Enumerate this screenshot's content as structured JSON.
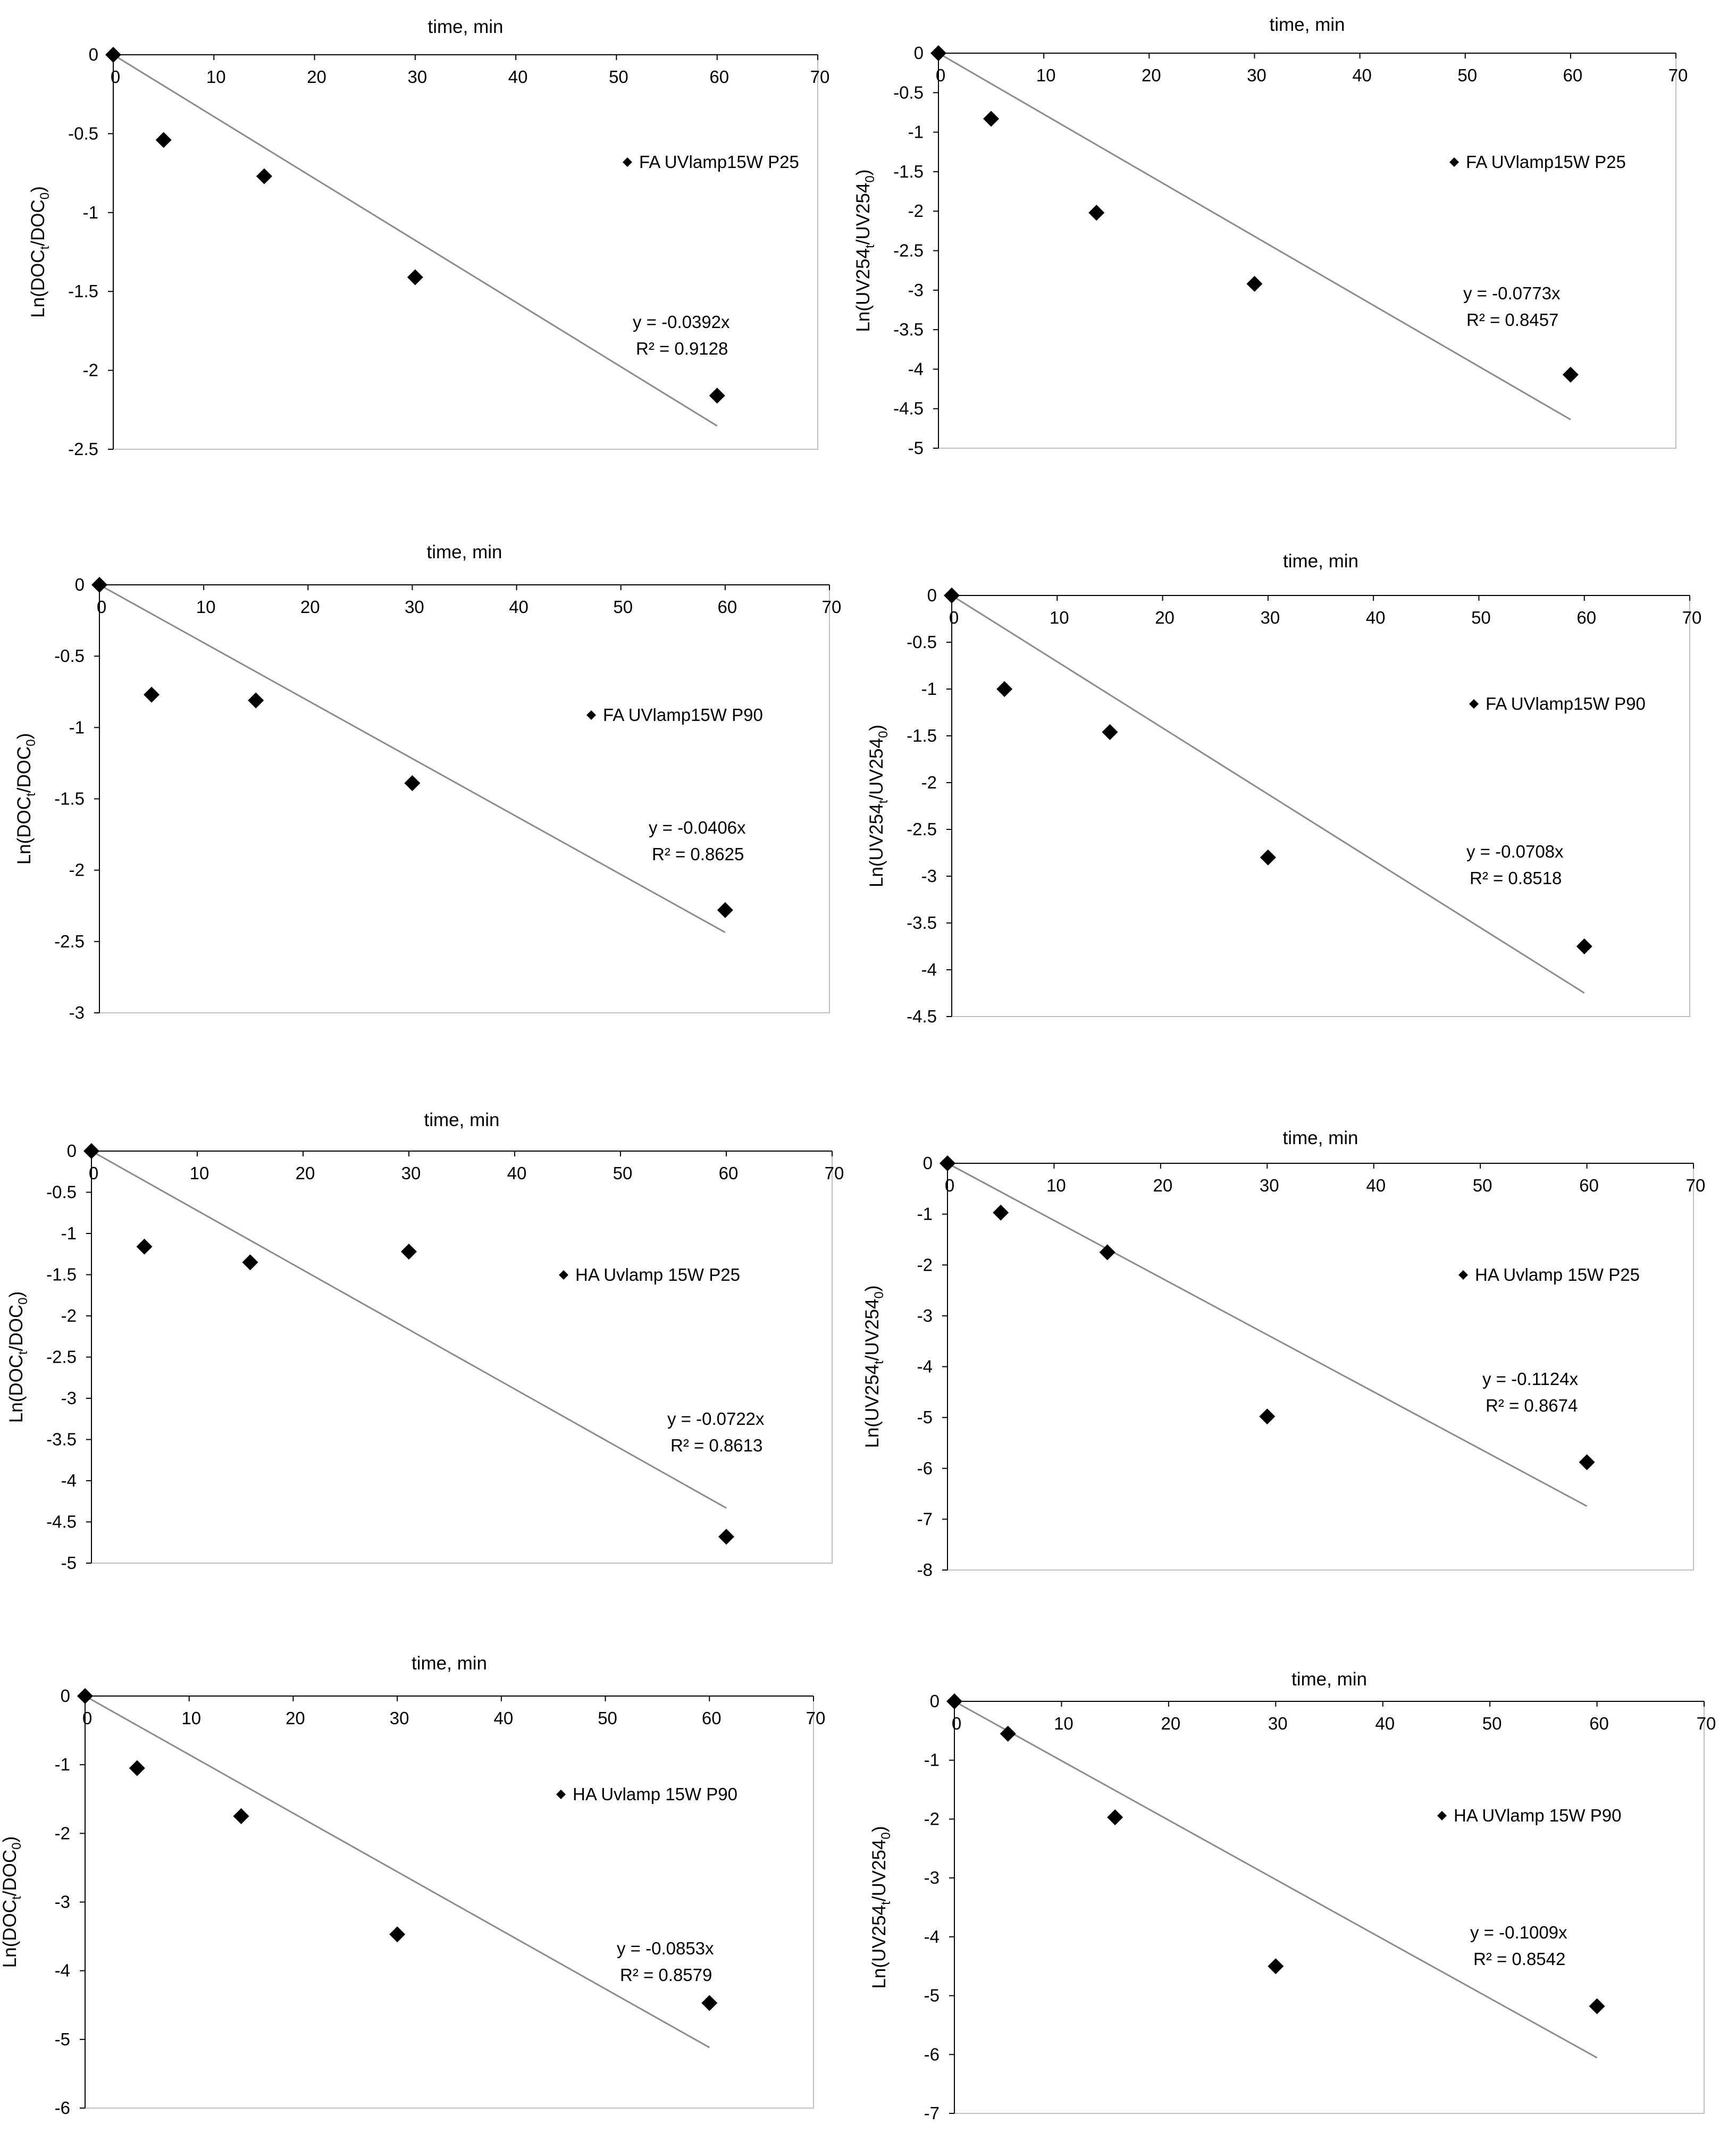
{
  "chart_data": [
    {
      "type": "scatter",
      "xlabel": "time, min",
      "ylabel": {
        "base": "Ln(DOC",
        "sub1": "t",
        "mid": "/DOC",
        "sub2": "0",
        "end": ")"
      },
      "xlim": [
        0,
        70
      ],
      "ylim": [
        -2.5,
        0
      ],
      "xticks": [
        "0",
        "10",
        "20",
        "30",
        "40",
        "50",
        "60",
        "70"
      ],
      "yticks": [
        "0",
        "-0.5",
        "-1",
        "-1.5",
        "-2",
        "-2.5"
      ],
      "series": [
        {
          "name": "FA UVlamp15W P25",
          "x": [
            0,
            5,
            15,
            30,
            60
          ],
          "y": [
            0,
            -0.54,
            -0.77,
            -1.41,
            -2.16
          ]
        }
      ],
      "trendline": {
        "slope": -0.0392,
        "x_end": 60,
        "equation": "y = -0.0392x",
        "r2": "R² = 0.9128"
      }
    },
    {
      "type": "scatter",
      "xlabel": "time, min",
      "ylabel": {
        "base": "Ln(UV254",
        "sub1": "t",
        "mid": "/UV254",
        "sub2": "0",
        "end": ")"
      },
      "xlim": [
        0,
        70
      ],
      "ylim": [
        -5,
        0
      ],
      "xticks": [
        "0",
        "10",
        "20",
        "30",
        "40",
        "50",
        "60",
        "70"
      ],
      "yticks": [
        "0",
        "-0.5",
        "-1",
        "-1.5",
        "-2",
        "-2.5",
        "-3",
        "-3.5",
        "-4",
        "-4.5",
        "-5"
      ],
      "series": [
        {
          "name": "FA UVlamp15W P25",
          "x": [
            0,
            5,
            15,
            30,
            60
          ],
          "y": [
            0,
            -0.83,
            -2.02,
            -2.92,
            -4.07
          ]
        }
      ],
      "trendline": {
        "slope": -0.0773,
        "x_end": 60,
        "equation": "y = -0.0773x",
        "r2": "R² = 0.8457"
      }
    },
    {
      "type": "scatter",
      "xlabel": "time, min",
      "ylabel": {
        "base": "Ln(DOC",
        "sub1": "t",
        "mid": "/DOC",
        "sub2": "0",
        "end": ")"
      },
      "xlim": [
        0,
        70
      ],
      "ylim": [
        -3,
        0
      ],
      "xticks": [
        "0",
        "10",
        "20",
        "30",
        "40",
        "50",
        "60",
        "70"
      ],
      "yticks": [
        "0",
        "-0.5",
        "-1",
        "-1.5",
        "-2",
        "-2.5",
        "-3"
      ],
      "series": [
        {
          "name": "FA UVlamp15W P90",
          "x": [
            0,
            5,
            15,
            30,
            60
          ],
          "y": [
            0,
            -0.77,
            -0.81,
            -1.39,
            -2.28
          ]
        }
      ],
      "trendline": {
        "slope": -0.0406,
        "x_end": 60,
        "equation": "y = -0.0406x",
        "r2": "R² = 0.8625"
      }
    },
    {
      "type": "scatter",
      "xlabel": "time, min",
      "ylabel": {
        "base": "Ln(UV254",
        "sub1": "t",
        "mid": "/UV254",
        "sub2": "0",
        "end": ")"
      },
      "xlim": [
        0,
        70
      ],
      "ylim": [
        -4.5,
        0
      ],
      "xticks": [
        "0",
        "10",
        "20",
        "30",
        "40",
        "50",
        "60",
        "70"
      ],
      "yticks": [
        "0",
        "-0.5",
        "-1",
        "-1.5",
        "-2",
        "-2.5",
        "-3",
        "-3.5",
        "-4",
        "-4.5"
      ],
      "series": [
        {
          "name": "FA UVlamp15W P90",
          "x": [
            0,
            5,
            15,
            30,
            60
          ],
          "y": [
            0,
            -1.0,
            -1.46,
            -2.8,
            -3.75
          ]
        }
      ],
      "trendline": {
        "slope": -0.0708,
        "x_end": 60,
        "equation": "y = -0.0708x",
        "r2": "R² = 0.8518"
      }
    },
    {
      "type": "scatter",
      "xlabel": "time, min",
      "ylabel": {
        "base": "Ln(DOC",
        "sub1": "t",
        "mid": "/DOC",
        "sub2": "0",
        "end": ")"
      },
      "xlim": [
        0,
        70
      ],
      "ylim": [
        -5,
        0
      ],
      "xticks": [
        "0",
        "10",
        "20",
        "30",
        "40",
        "50",
        "60",
        "70"
      ],
      "yticks": [
        "0",
        "-0.5",
        "-1",
        "-1.5",
        "-2",
        "-2.5",
        "-3",
        "-3.5",
        "-4",
        "-4.5",
        "-5"
      ],
      "series": [
        {
          "name": "HA Uvlamp 15W P25",
          "x": [
            0,
            5,
            15,
            30,
            60
          ],
          "y": [
            0,
            -1.16,
            -1.35,
            -1.22,
            -4.68
          ]
        }
      ],
      "trendline": {
        "slope": -0.0722,
        "x_end": 60,
        "equation": "y = -0.0722x",
        "r2": "R² = 0.8613"
      }
    },
    {
      "type": "scatter",
      "xlabel": "time, min",
      "ylabel": {
        "base": "Ln(UV254",
        "sub1": "t",
        "mid": "/UV254",
        "sub2": "0",
        "end": ")"
      },
      "xlim": [
        0,
        70
      ],
      "ylim": [
        -8,
        0
      ],
      "xticks": [
        "0",
        "10",
        "20",
        "30",
        "40",
        "50",
        "60",
        "70"
      ],
      "yticks": [
        "0",
        "-1",
        "-2",
        "-3",
        "-4",
        "-5",
        "-6",
        "-7",
        "-8"
      ],
      "series": [
        {
          "name": "HA Uvlamp 15W P25",
          "x": [
            0,
            5,
            15,
            30,
            60
          ],
          "y": [
            0,
            -0.97,
            -1.75,
            -4.98,
            -5.88
          ]
        }
      ],
      "trendline": {
        "slope": -0.1124,
        "x_end": 60,
        "equation": "y = -0.1124x",
        "r2": "R² = 0.8674"
      }
    },
    {
      "type": "scatter",
      "xlabel": "time, min",
      "ylabel": {
        "base": "Ln(DOC",
        "sub1": "t",
        "mid": "/DOC",
        "sub2": "0",
        "end": ")"
      },
      "xlim": [
        0,
        70
      ],
      "ylim": [
        -6,
        0
      ],
      "xticks": [
        "0",
        "10",
        "20",
        "30",
        "40",
        "50",
        "60",
        "70"
      ],
      "yticks": [
        "0",
        "-1",
        "-2",
        "-3",
        "-4",
        "-5",
        "-6"
      ],
      "series": [
        {
          "name": "HA Uvlamp 15W P90",
          "x": [
            0,
            5,
            15,
            30,
            60
          ],
          "y": [
            0,
            -1.05,
            -1.75,
            -3.47,
            -4.47
          ]
        }
      ],
      "trendline": {
        "slope": -0.0853,
        "x_end": 60,
        "equation": "y = -0.0853x",
        "r2": "R² = 0.8579"
      }
    },
    {
      "type": "scatter",
      "xlabel": "time, min",
      "ylabel": {
        "base": "Ln(UV254",
        "sub1": "t",
        "mid": "/UV254",
        "sub2": "0",
        "end": ")"
      },
      "xlim": [
        0,
        70
      ],
      "ylim": [
        -7,
        0
      ],
      "xticks": [
        "0",
        "10",
        "20",
        "30",
        "40",
        "50",
        "60",
        "70"
      ],
      "yticks": [
        "0",
        "-1",
        "-2",
        "-3",
        "-4",
        "-5",
        "-6",
        "-7"
      ],
      "series": [
        {
          "name": "HA UVlamp 15W P90",
          "x": [
            0,
            5,
            15,
            30,
            60
          ],
          "y": [
            0,
            -0.55,
            -1.97,
            -4.5,
            -5.18
          ]
        }
      ],
      "trendline": {
        "slope": -0.1009,
        "x_end": 60,
        "equation": "y = -0.1009x",
        "r2": "R² = 0.8542"
      }
    }
  ]
}
